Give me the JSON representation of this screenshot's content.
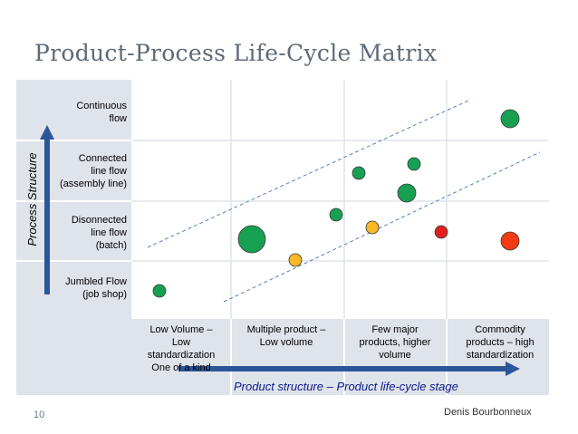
{
  "title": "Product-Process Life-Cycle Matrix",
  "slide_number": "10",
  "author": "Denis Bourbonneux",
  "y_axis_label": "Process Structure",
  "x_axis_label": "Product structure – Product life-cycle stage",
  "rows": [
    {
      "line1": "Continuous",
      "line2": "flow",
      "line3": ""
    },
    {
      "line1": "Connected",
      "line2": "line flow",
      "line3": "(assembly line)"
    },
    {
      "line1": "Disonnected",
      "line2": "line flow",
      "line3": "(batch)"
    },
    {
      "line1": "Jumbled Flow",
      "line2": "(job shop)",
      "line3": ""
    }
  ],
  "columns": [
    {
      "line1": "Low Volume –",
      "line2": "Low",
      "line3": "standardization",
      "line4": "One of a kind"
    },
    {
      "line1": "Multiple product –",
      "line2": "Low volume",
      "line3": "",
      "line4": ""
    },
    {
      "line1": "Few major",
      "line2": "products, higher",
      "line3": "volume",
      "line4": ""
    },
    {
      "line1": "Commodity",
      "line2": "products – high",
      "line3": "standardization",
      "line4": ""
    }
  ],
  "colors": {
    "green": "#17a052",
    "yellow": "#f7b928",
    "red": "#e02020",
    "orange_red": "#f23b12",
    "axis_arrow": "#2b579a",
    "x_label": "#0a1a8c",
    "grid_fill": "#dfe3ea",
    "dashed": "#5b7fb5"
  },
  "bubbles": [
    {
      "color": "green",
      "size": "small"
    },
    {
      "color": "green",
      "size": "large"
    },
    {
      "color": "yellow",
      "size": "small"
    },
    {
      "color": "green",
      "size": "small"
    },
    {
      "color": "yellow",
      "size": "small"
    },
    {
      "color": "green",
      "size": "small"
    },
    {
      "color": "green",
      "size": "medium"
    },
    {
      "color": "green",
      "size": "small"
    },
    {
      "color": "red",
      "size": "small"
    },
    {
      "color": "orange_red",
      "size": "medium"
    },
    {
      "color": "green",
      "size": "medium"
    }
  ]
}
